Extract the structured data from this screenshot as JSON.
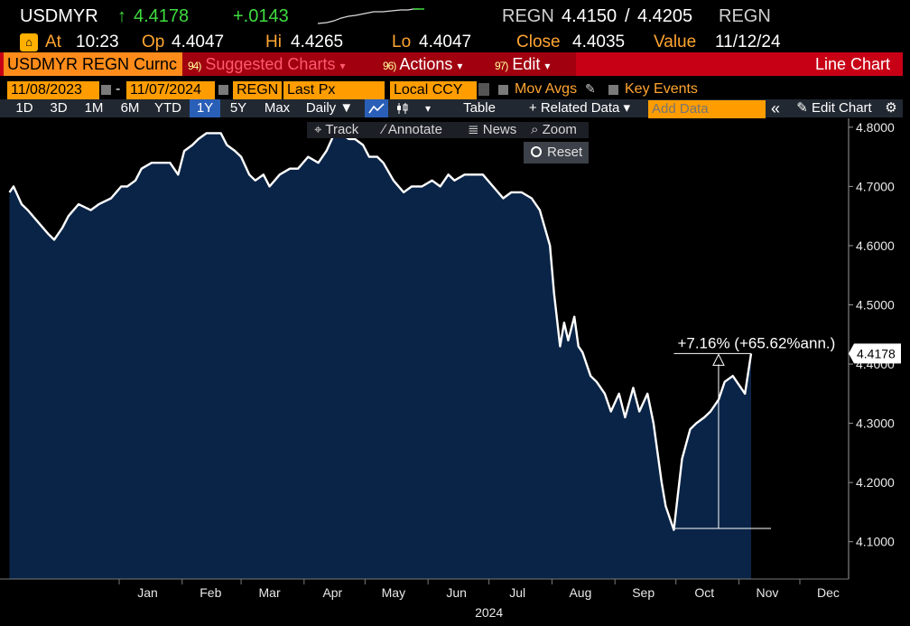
{
  "quote": {
    "ticker": "USDMYR",
    "arrow": "↑",
    "last": "4.4178",
    "change": "+.0143",
    "source1": "REGN",
    "bid": "4.4150",
    "slash": "/",
    "ask": "4.4205",
    "source2": "REGN",
    "at_label": "At",
    "time": "10:23",
    "open_label": "Op",
    "open": "4.4047",
    "high_label": "Hi",
    "high": "4.4265",
    "low_label": "Lo",
    "low": "4.4047",
    "close_label": "Close",
    "close": "4.4035",
    "value_label": "Value",
    "value_date": "11/12/24"
  },
  "menubar": {
    "security": "USDMYR REGN Curnc",
    "suggested_num": "94)",
    "suggested": "Suggested Charts",
    "actions_num": "96)",
    "actions": "Actions",
    "edit_num": "97)",
    "edit": "Edit",
    "dropdown_glyph": "▾",
    "chart_type": "Line Chart"
  },
  "params": {
    "start_date": "11/08/2023",
    "dash": "-",
    "end_date": "11/07/2024",
    "pricing_source": "REGN",
    "field": "Last Px",
    "currency": "Local CCY",
    "mov_avgs": "Mov Avgs",
    "key_events": "Key Events"
  },
  "toolbar": {
    "periods": [
      "1D",
      "3D",
      "1M",
      "6M",
      "YTD",
      "1Y",
      "5Y",
      "Max"
    ],
    "selected_period": "1Y",
    "frequency": "Daily ▼",
    "table": "Table",
    "related": "+ Related Data ▾",
    "add_data_placeholder": "Add Data",
    "collapse": "«",
    "edit_chart": "Edit Chart",
    "settings_glyph": "⚙"
  },
  "chart_tools": {
    "track": "Track",
    "annotate": "Annotate",
    "news": "News",
    "zoom": "Zoom",
    "reset": "Reset"
  },
  "colors": {
    "line": "#ffffff",
    "fill": "#0a2447",
    "header_red": "#c80016",
    "orange": "#ff9d00",
    "green": "#3fdc3f"
  },
  "chart_data": {
    "type": "area",
    "x_axis": {
      "months": [
        "Jan",
        "Feb",
        "Mar",
        "Apr",
        "May",
        "Jun",
        "Jul",
        "Aug",
        "Sep",
        "Oct",
        "Nov",
        "Dec"
      ],
      "year_label": "2024"
    },
    "y_axis": {
      "ticks": [
        "4.1000",
        "4.2000",
        "4.3000",
        "4.4000",
        "4.5000",
        "4.6000",
        "4.7000",
        "4.8000"
      ],
      "ylim": [
        4.037,
        4.815
      ]
    },
    "last_value_label": "4.4178",
    "annotation": "+7.16% (+65.62%ann.)",
    "low_marker": 4.1225,
    "last_marker": 4.4178,
    "series": [
      {
        "points": [
          [
            "2023-11-08",
            4.69
          ],
          [
            "2023-11-10",
            4.7
          ],
          [
            "2023-11-14",
            4.67
          ],
          [
            "2023-11-17",
            4.66
          ],
          [
            "2023-11-22",
            4.64
          ],
          [
            "2023-11-27",
            4.62
          ],
          [
            "2023-11-30",
            4.61
          ],
          [
            "2023-12-04",
            4.63
          ],
          [
            "2023-12-07",
            4.65
          ],
          [
            "2023-12-12",
            4.67
          ],
          [
            "2023-12-18",
            4.66
          ],
          [
            "2023-12-22",
            4.67
          ],
          [
            "2023-12-28",
            4.68
          ],
          [
            "2024-01-02",
            4.7
          ],
          [
            "2024-01-05",
            4.7
          ],
          [
            "2024-01-09",
            4.71
          ],
          [
            "2024-01-12",
            4.73
          ],
          [
            "2024-01-17",
            4.74
          ],
          [
            "2024-01-22",
            4.74
          ],
          [
            "2024-01-26",
            4.74
          ],
          [
            "2024-01-30",
            4.72
          ],
          [
            "2024-02-02",
            4.76
          ],
          [
            "2024-02-06",
            4.77
          ],
          [
            "2024-02-09",
            4.78
          ],
          [
            "2024-02-13",
            4.79
          ],
          [
            "2024-02-16",
            4.79
          ],
          [
            "2024-02-20",
            4.79
          ],
          [
            "2024-02-23",
            4.77
          ],
          [
            "2024-02-27",
            4.76
          ],
          [
            "2024-03-01",
            4.75
          ],
          [
            "2024-03-05",
            4.72
          ],
          [
            "2024-03-08",
            4.71
          ],
          [
            "2024-03-12",
            4.72
          ],
          [
            "2024-03-15",
            4.7
          ],
          [
            "2024-03-20",
            4.72
          ],
          [
            "2024-03-25",
            4.73
          ],
          [
            "2024-03-29",
            4.73
          ],
          [
            "2024-04-03",
            4.75
          ],
          [
            "2024-04-08",
            4.74
          ],
          [
            "2024-04-12",
            4.76
          ],
          [
            "2024-04-16",
            4.79
          ],
          [
            "2024-04-19",
            4.79
          ],
          [
            "2024-04-23",
            4.78
          ],
          [
            "2024-04-26",
            4.78
          ],
          [
            "2024-04-30",
            4.77
          ],
          [
            "2024-05-03",
            4.75
          ],
          [
            "2024-05-07",
            4.75
          ],
          [
            "2024-05-10",
            4.74
          ],
          [
            "2024-05-15",
            4.71
          ],
          [
            "2024-05-20",
            4.69
          ],
          [
            "2024-05-24",
            4.7
          ],
          [
            "2024-05-29",
            4.7
          ],
          [
            "2024-06-03",
            4.71
          ],
          [
            "2024-06-07",
            4.7
          ],
          [
            "2024-06-11",
            4.72
          ],
          [
            "2024-06-14",
            4.71
          ],
          [
            "2024-06-19",
            4.72
          ],
          [
            "2024-06-24",
            4.72
          ],
          [
            "2024-06-28",
            4.72
          ],
          [
            "2024-07-03",
            4.7
          ],
          [
            "2024-07-08",
            4.68
          ],
          [
            "2024-07-12",
            4.69
          ],
          [
            "2024-07-17",
            4.69
          ],
          [
            "2024-07-22",
            4.68
          ],
          [
            "2024-07-26",
            4.66
          ],
          [
            "2024-07-31",
            4.6
          ],
          [
            "2024-08-02",
            4.52
          ],
          [
            "2024-08-05",
            4.43
          ],
          [
            "2024-08-07",
            4.47
          ],
          [
            "2024-08-09",
            4.44
          ],
          [
            "2024-08-12",
            4.48
          ],
          [
            "2024-08-14",
            4.43
          ],
          [
            "2024-08-16",
            4.42
          ],
          [
            "2024-08-20",
            4.38
          ],
          [
            "2024-08-23",
            4.37
          ],
          [
            "2024-08-27",
            4.35
          ],
          [
            "2024-08-30",
            4.32
          ],
          [
            "2024-09-03",
            4.35
          ],
          [
            "2024-09-06",
            4.31
          ],
          [
            "2024-09-10",
            4.36
          ],
          [
            "2024-09-13",
            4.32
          ],
          [
            "2024-09-17",
            4.35
          ],
          [
            "2024-09-20",
            4.3
          ],
          [
            "2024-09-24",
            4.2
          ],
          [
            "2024-09-26",
            4.16
          ],
          [
            "2024-09-30",
            4.12
          ],
          [
            "2024-10-02",
            4.18
          ],
          [
            "2024-10-04",
            4.24
          ],
          [
            "2024-10-08",
            4.29
          ],
          [
            "2024-10-11",
            4.3
          ],
          [
            "2024-10-15",
            4.31
          ],
          [
            "2024-10-18",
            4.32
          ],
          [
            "2024-10-22",
            4.34
          ],
          [
            "2024-10-25",
            4.37
          ],
          [
            "2024-10-29",
            4.38
          ],
          [
            "2024-10-31",
            4.37
          ],
          [
            "2024-11-04",
            4.35
          ],
          [
            "2024-11-07",
            4.4178
          ]
        ]
      }
    ]
  }
}
